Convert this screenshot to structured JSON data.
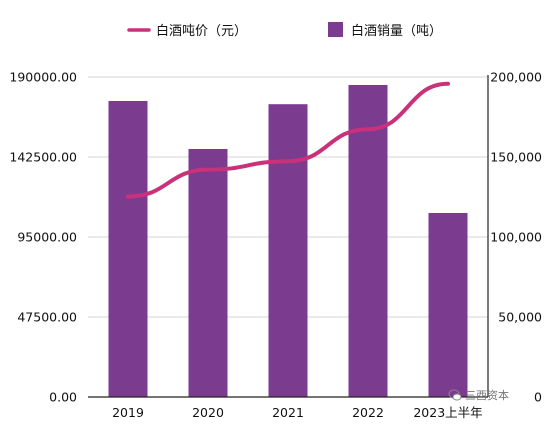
{
  "chart_data": {
    "type": "bar+line",
    "categories": [
      "2019",
      "2020",
      "2021",
      "2022",
      "2023上半年"
    ],
    "series": [
      {
        "name": "白酒销量（吨）",
        "type": "bar",
        "axis": "right",
        "color": "#7b3b8f",
        "values": [
          185000,
          155000,
          183000,
          195000,
          115000
        ]
      },
      {
        "name": "白酒吨价（元）",
        "type": "line",
        "axis": "left",
        "color": "#c9317b",
        "values": [
          119000,
          135000,
          140000,
          159000,
          186000
        ]
      }
    ],
    "left_axis": {
      "ticks": [
        "0.00",
        "47500.00",
        "95000.00",
        "142500.00",
        "190000.00"
      ],
      "ylim": [
        0,
        190000
      ]
    },
    "right_axis": {
      "ticks": [
        "0",
        "50,000",
        "100,000",
        "150,000",
        "200,000"
      ],
      "ylim": [
        0,
        200000
      ]
    },
    "legend_position": "top",
    "grid": "horizontal"
  },
  "watermark": {
    "text": "三酉资本"
  }
}
